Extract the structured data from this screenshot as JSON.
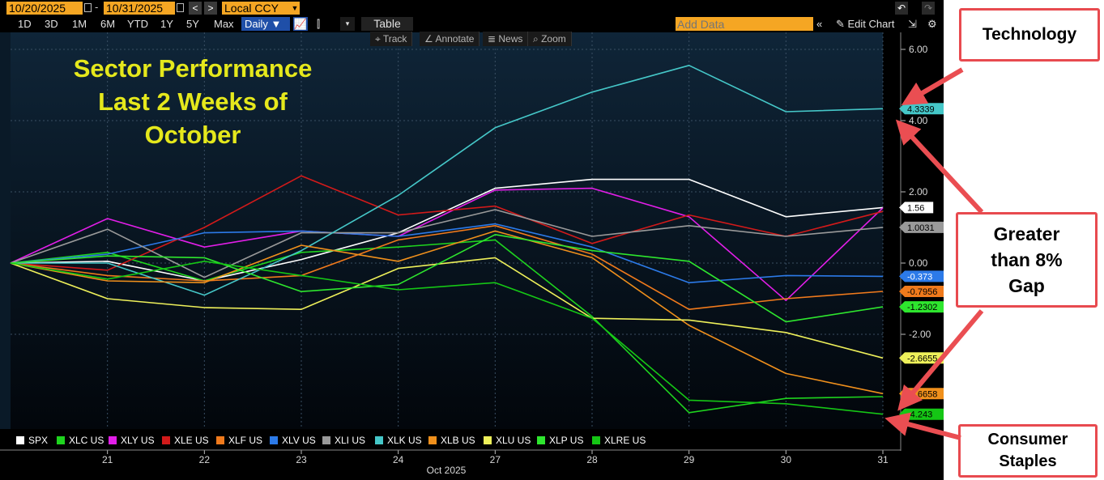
{
  "toolbar": {
    "start_date": "10/20/2025",
    "end_date": "10/31/2025",
    "date_sep": "-",
    "prev": "<",
    "next": ">",
    "currency": "Local CCY",
    "periods": [
      "1D",
      "3D",
      "1M",
      "6M",
      "YTD",
      "1Y",
      "5Y",
      "Max"
    ],
    "frequency": "Daily",
    "table_label": "Table",
    "add_data_placeholder": "Add Data",
    "edit_chart_label": "Edit Chart"
  },
  "tools": [
    "Track",
    "Annotate",
    "News",
    "Zoom"
  ],
  "annotations": {
    "technology": "Technology",
    "gap": "Greater than 8% Gap",
    "consumer_staples": "Consumer Staples"
  },
  "colors": {
    "background": "#000000",
    "title": "#e5e81c",
    "annotation_border": "#e84a4f",
    "arrow": "#ea4e52"
  },
  "chart_data": {
    "type": "line",
    "title": "Sector Performance Last 2 Weeks of October",
    "xlabel": "Oct 2025",
    "ylabel": "",
    "x": [
      "20",
      "21",
      "22",
      "23",
      "24",
      "27",
      "28",
      "29",
      "30",
      "31"
    ],
    "x_tick_labels": [
      "21",
      "22",
      "23",
      "24",
      "27",
      "28",
      "29",
      "30",
      "31"
    ],
    "ylim": [
      -4.8,
      6.2
    ],
    "y_ticks": [
      "6.00",
      "4.00",
      "2.00",
      "0.00",
      "-2.00"
    ],
    "y_tick_values": [
      6,
      4,
      2,
      0,
      -2
    ],
    "grid": true,
    "legend": "bottom-left",
    "series": [
      {
        "name": "SPX",
        "color": "#ffffff",
        "values": [
          0,
          0.05,
          -0.5,
          0.1,
          0.85,
          2.1,
          2.35,
          2.35,
          1.3,
          1.56
        ],
        "end_label": "1.56"
      },
      {
        "name": "XLC US",
        "color": "#1ed41e",
        "values": [
          0,
          0.3,
          -0.5,
          0.3,
          0.45,
          0.65,
          -1.5,
          -4.2,
          -3.8,
          -3.75
        ],
        "end_label": ""
      },
      {
        "name": "XLY US",
        "color": "#e21ee8",
        "values": [
          0,
          1.25,
          0.45,
          0.9,
          0.75,
          2.05,
          2.1,
          1.3,
          -1.05,
          1.55
        ],
        "end_label": ""
      },
      {
        "name": "XLE US",
        "color": "#d21a1a",
        "values": [
          0,
          -0.2,
          1.0,
          2.45,
          1.35,
          1.6,
          0.55,
          1.35,
          0.75,
          1.45
        ],
        "end_label": ""
      },
      {
        "name": "XLF US",
        "color": "#f07a1c",
        "values": [
          0,
          -0.35,
          -0.5,
          -0.35,
          0.65,
          1.05,
          0.25,
          -1.3,
          -1.0,
          -0.7956
        ],
        "end_label": "-0.7956"
      },
      {
        "name": "XLV US",
        "color": "#2c7ae8",
        "values": [
          0,
          0.25,
          0.85,
          0.9,
          0.75,
          1.1,
          0.45,
          -0.55,
          -0.35,
          -0.373
        ],
        "end_label": "-0.373"
      },
      {
        "name": "XLI US",
        "color": "#9a9a9a",
        "values": [
          0,
          0.95,
          -0.4,
          0.85,
          0.85,
          1.5,
          0.75,
          1.05,
          0.75,
          1.0031
        ],
        "end_label": "1.0031"
      },
      {
        "name": "XLK US",
        "color": "#45c7c8",
        "values": [
          0,
          0,
          -0.9,
          0.35,
          1.9,
          3.8,
          4.8,
          5.55,
          4.25,
          4.3339
        ],
        "end_label": "4.3339"
      },
      {
        "name": "XLB US",
        "color": "#f0901c",
        "values": [
          0,
          -0.5,
          -0.55,
          0.5,
          0.05,
          0.9,
          0.15,
          -1.75,
          -3.1,
          -3.6658
        ],
        "end_label": "-3.6658"
      },
      {
        "name": "XLU US",
        "color": "#eef05a",
        "values": [
          0,
          -1.0,
          -1.25,
          -1.3,
          -0.15,
          0.15,
          -1.55,
          -1.6,
          -1.95,
          -2.6655
        ],
        "end_label": "-2.6655"
      },
      {
        "name": "XLP US",
        "color": "#2ee62e",
        "values": [
          0,
          0.2,
          0.15,
          -0.8,
          -0.6,
          0.8,
          0.35,
          0.05,
          -1.65,
          -1.2302
        ],
        "end_label": "-1.2302"
      },
      {
        "name": "XLRE US",
        "color": "#15c615",
        "values": [
          0,
          -0.45,
          0.05,
          -0.35,
          -0.75,
          -0.55,
          -1.55,
          -3.85,
          -3.95,
          -4.243
        ],
        "end_label": "-4.243"
      }
    ]
  }
}
